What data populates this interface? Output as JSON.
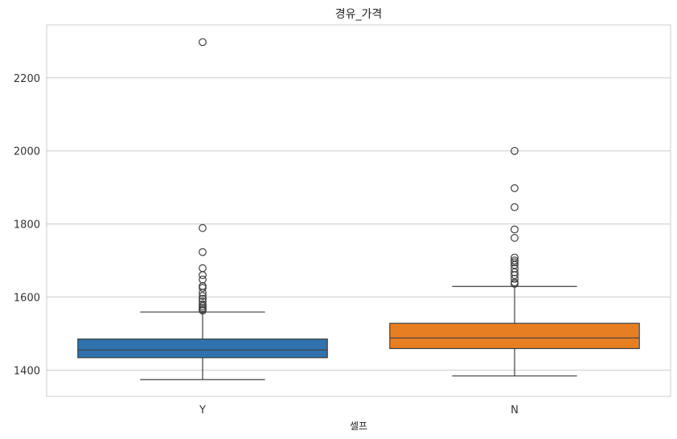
{
  "chart_data": {
    "type": "box",
    "title": "경유_가격",
    "xlabel": "셀프",
    "ylabel": "",
    "ylim": [
      1328,
      2345
    ],
    "yticks": [
      1400,
      1600,
      1800,
      2000,
      2200
    ],
    "grid": true,
    "categories": [
      "Y",
      "N"
    ],
    "series": [
      {
        "category": "Y",
        "color": "#2f72ad",
        "whisker_low": 1374,
        "q1": 1434,
        "median": 1455,
        "q3": 1485,
        "whisker_high": 1559,
        "outliers": [
          2298,
          1789,
          1723,
          1679,
          1660,
          1648,
          1630,
          1625,
          1612,
          1603,
          1595,
          1588,
          1580,
          1575,
          1570,
          1566,
          1563
        ]
      },
      {
        "category": "N",
        "color": "#e77f22",
        "whisker_low": 1384,
        "q1": 1459,
        "median": 1488,
        "q3": 1528,
        "whisker_high": 1629,
        "outliers": [
          2000,
          1898,
          1846,
          1785,
          1762,
          1708,
          1700,
          1695,
          1688,
          1678,
          1668,
          1660,
          1650,
          1640,
          1636
        ]
      }
    ]
  }
}
